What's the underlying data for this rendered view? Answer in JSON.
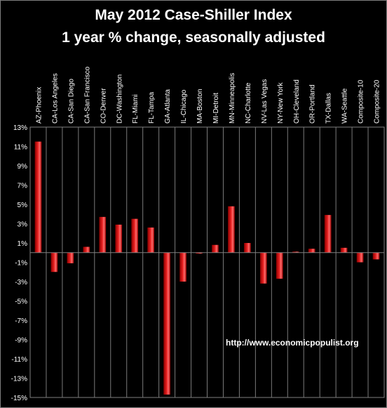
{
  "chart_data": {
    "type": "bar",
    "title": "May 2012 Case-Shiller Index",
    "subtitle": "1 year % change, seasonally adjusted",
    "xlabel": "",
    "ylabel": "",
    "ylim": [
      -15,
      13
    ],
    "yticks": [
      13,
      11,
      9,
      7,
      5,
      3,
      1,
      -1,
      -3,
      -5,
      -7,
      -9,
      -11,
      -13,
      -15
    ],
    "ytick_suffix": "%",
    "grid": "vertical category gridlines",
    "categories": [
      "AZ-Phoenix",
      "CA-Los Angeles",
      "CA-San Diego",
      "CA-San Francisco",
      "CO-Denver",
      "DC-Washington",
      "FL-Miami",
      "FL-Tampa",
      "GA-Atlanta",
      "IL-Chicago",
      "MA-Boston",
      "MI-Detroit",
      "MN-Minneapolis",
      "NC-Charlotte",
      "NV-Las Vegas",
      "NY-New York",
      "OH-Cleveland",
      "OR-Portland",
      "TX-Dallas",
      "WA-Seattle",
      "Composite-10",
      "Composite-20"
    ],
    "values": [
      11.5,
      -2.0,
      -1.1,
      0.6,
      3.7,
      2.9,
      3.5,
      2.6,
      -14.7,
      -3.0,
      -0.1,
      0.8,
      4.8,
      1.0,
      -3.2,
      -2.7,
      0.1,
      0.4,
      3.9,
      0.5,
      -1.0,
      -0.7
    ],
    "bar_color": "#e82020",
    "annotation": "http://www.economicpopulist.org"
  }
}
